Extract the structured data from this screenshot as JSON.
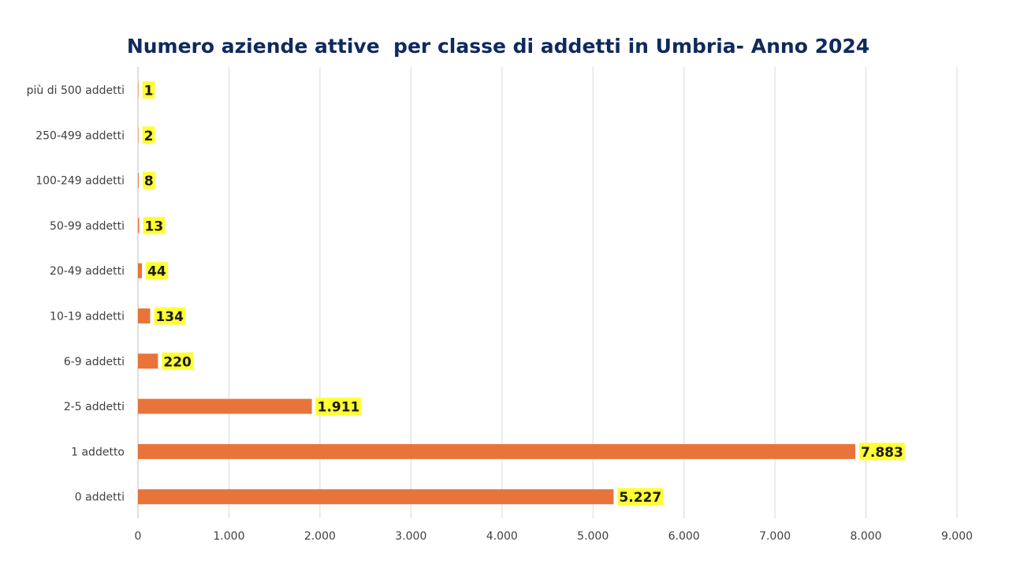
{
  "chart_data": {
    "type": "bar",
    "orientation": "horizontal",
    "title": "Numero aziende attive  per classe di addetti in Umbria- Anno 2024",
    "categories": [
      "più di 500 addetti",
      "250-499 addetti",
      "100-249 addetti",
      "50-99 addetti",
      "20-49 addetti",
      "10-19 addetti",
      "6-9 addetti",
      "2-5 addetti",
      "1 addetto",
      "0 addetti"
    ],
    "values": [
      1,
      2,
      8,
      13,
      44,
      134,
      220,
      1911,
      7883,
      5227
    ],
    "data_labels": [
      "1",
      "2",
      "8",
      "13",
      "44",
      "134",
      "220",
      "1.911",
      "7.883",
      "5.227"
    ],
    "xlim": [
      0,
      9000
    ],
    "x_ticks": [
      0,
      1000,
      2000,
      3000,
      4000,
      5000,
      6000,
      7000,
      8000,
      9000
    ],
    "x_tick_labels": [
      "0",
      "1.000",
      "2.000",
      "3.000",
      "4.000",
      "5.000",
      "6.000",
      "7.000",
      "8.000",
      "9.000"
    ],
    "xlabel": "",
    "ylabel": "",
    "grid": true,
    "legend": "none",
    "bar_color": "#e8743b",
    "label_highlight_color": "#ffff33",
    "title_color": "#0f2a5c"
  }
}
